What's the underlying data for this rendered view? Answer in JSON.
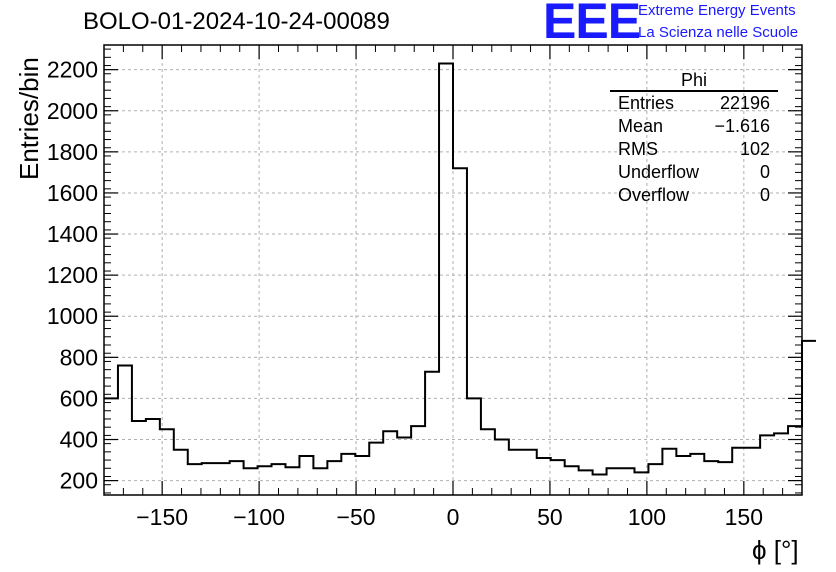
{
  "header": {
    "title": "BOLO-01-2024-10-24-00089",
    "logo_text": "EEE",
    "logo_line1": "Extreme Energy Events",
    "logo_line2": "La Scienza nelle Scuole"
  },
  "colors": {
    "logo": "#1a1aff",
    "histogram": "#000000",
    "grid": "#b0b0b0"
  },
  "stats": {
    "name": "Phi",
    "rows": [
      {
        "label": "Entries",
        "value": "22196"
      },
      {
        "label": "Mean",
        "value": "−1.616"
      },
      {
        "label": "RMS",
        "value": "102"
      },
      {
        "label": "Underflow",
        "value": "0"
      },
      {
        "label": "Overflow",
        "value": "0"
      }
    ]
  },
  "chart_data": {
    "type": "bar",
    "style": "step-histogram",
    "xlabel": "ϕ [°]",
    "ylabel": "Entries/bin",
    "xlim": [
      -180,
      180
    ],
    "ylim": [
      130,
      2320
    ],
    "bin_width": 7.2,
    "x_ticks": [
      -150,
      -100,
      -50,
      0,
      50,
      100,
      150
    ],
    "x_tick_labels": [
      "−150",
      "−100",
      "−50",
      "0",
      "50",
      "100",
      "150"
    ],
    "y_ticks": [
      200,
      400,
      600,
      800,
      1000,
      1200,
      1400,
      1600,
      1800,
      2000,
      2200
    ],
    "grid": true,
    "values": [
      600,
      760,
      490,
      500,
      450,
      350,
      280,
      285,
      285,
      295,
      260,
      270,
      280,
      265,
      320,
      260,
      295,
      330,
      320,
      385,
      440,
      410,
      465,
      730,
      2230,
      1720,
      600,
      450,
      400,
      350,
      350,
      310,
      300,
      270,
      250,
      230,
      260,
      260,
      240,
      280,
      355,
      320,
      330,
      295,
      290,
      360,
      360,
      420,
      430,
      465,
      880
    ]
  }
}
